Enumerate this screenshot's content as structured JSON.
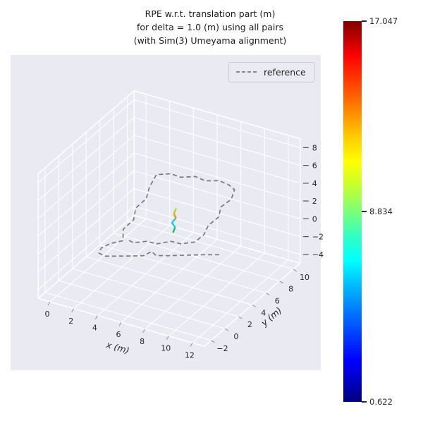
{
  "figure": {
    "title_lines": [
      "RPE w.r.t. translation part (m)",
      "for delta = 1.0 (m) using all pairs",
      "(with Sim(3) Umeyama alignment)"
    ]
  },
  "chart_data": {
    "type": "line",
    "projection": "3d",
    "title": "RPE w.r.t. translation part (m) for delta = 1.0 (m) using all pairs (with Sim(3) Umeyama alignment)",
    "axes": {
      "x": {
        "label": "x (m)",
        "ticks": [
          0,
          2,
          4,
          6,
          8,
          10,
          12
        ],
        "range": [
          -1,
          13
        ]
      },
      "y": {
        "label": "y (m)",
        "ticks": [
          -2,
          0,
          2,
          4,
          6,
          8,
          10
        ],
        "range": [
          -3,
          11
        ]
      },
      "z": {
        "label": "",
        "ticks": [
          -4,
          -2,
          0,
          2,
          4,
          6,
          8
        ],
        "range": [
          -5,
          9
        ]
      }
    },
    "view": {
      "elev": 30,
      "azim": -60
    },
    "grid": true,
    "legend": {
      "position": "upper right",
      "entries": [
        {
          "label": "reference",
          "line_style": "dashed",
          "color": "#7a7a7a"
        }
      ]
    },
    "style": {
      "pane_color": "#eaeaf2",
      "grid_color": "#ffffff",
      "text_color": "#262626",
      "reference_color": "#7a7a7a"
    },
    "series": [
      {
        "name": "reference",
        "style": "dashed",
        "color": "#7a7a7a",
        "points": [
          [
            10.8,
            3.0,
            0.45
          ],
          [
            9.6,
            2.6,
            0.25
          ],
          [
            8.4,
            2.2,
            0.0
          ],
          [
            7.2,
            1.8,
            -0.25
          ],
          [
            6.3,
            1.55,
            -0.4
          ],
          [
            5.8,
            1.8,
            -0.3
          ],
          [
            5.4,
            1.3,
            -0.6
          ],
          [
            4.6,
            1.0,
            -0.75
          ],
          [
            3.6,
            0.7,
            -0.95
          ],
          [
            2.7,
            0.4,
            -1.1
          ],
          [
            2.1,
            0.5,
            -1.05
          ],
          [
            2.0,
            1.0,
            -0.85
          ],
          [
            2.4,
            1.6,
            -0.6
          ],
          [
            3.2,
            2.1,
            -0.3
          ],
          [
            2.7,
            3.0,
            0.2
          ],
          [
            3.0,
            4.0,
            0.7
          ],
          [
            2.6,
            5.0,
            1.2
          ],
          [
            2.9,
            6.0,
            1.7
          ],
          [
            2.6,
            7.0,
            2.2
          ],
          [
            2.5,
            8.2,
            2.8
          ],
          [
            3.5,
            8.6,
            3.0
          ],
          [
            4.5,
            8.3,
            3.2
          ],
          [
            5.5,
            8.7,
            3.4
          ],
          [
            6.5,
            8.4,
            3.5
          ],
          [
            7.5,
            8.7,
            3.7
          ],
          [
            8.5,
            8.4,
            3.8
          ],
          [
            9.2,
            8.0,
            3.8
          ],
          [
            9.5,
            7.0,
            3.5
          ],
          [
            9.2,
            6.0,
            3.2
          ],
          [
            9.6,
            5.0,
            2.9
          ],
          [
            9.3,
            4.0,
            2.5
          ],
          [
            9.5,
            3.0,
            2.2
          ],
          [
            9.2,
            2.2,
            1.8
          ],
          [
            8.2,
            1.9,
            1.4
          ],
          [
            7.2,
            2.2,
            1.1
          ],
          [
            6.2,
            1.8,
            0.7
          ],
          [
            5.2,
            2.1,
            0.4
          ],
          [
            4.2,
            1.9,
            0.0
          ],
          [
            3.4,
            2.3,
            -0.2
          ]
        ]
      },
      {
        "name": "estimate_rpe_colormapped",
        "style": "solid",
        "points": [
          [
            6.4,
            3.9,
            0.7
          ],
          [
            6.5,
            4.0,
            1.2
          ],
          [
            6.3,
            3.9,
            1.7
          ],
          [
            6.5,
            4.1,
            2.2
          ],
          [
            6.4,
            4.0,
            2.7
          ],
          [
            6.5,
            4.1,
            3.2
          ]
        ],
        "segment_values": [
          8.9,
          7.4,
          6.6,
          13.5,
          10.2
        ],
        "segment_colors": [
          "#33b55e",
          "#1ecfc3",
          "#29c3f2",
          "#ff9100",
          "#b5d32c"
        ]
      }
    ],
    "colorbar": {
      "colormap": "jet",
      "min": 0.622,
      "max": 17.047,
      "ticks": [
        17.047,
        8.834,
        0.622
      ],
      "tick_labels": [
        "17.047",
        "8.834",
        "0.622"
      ]
    }
  }
}
